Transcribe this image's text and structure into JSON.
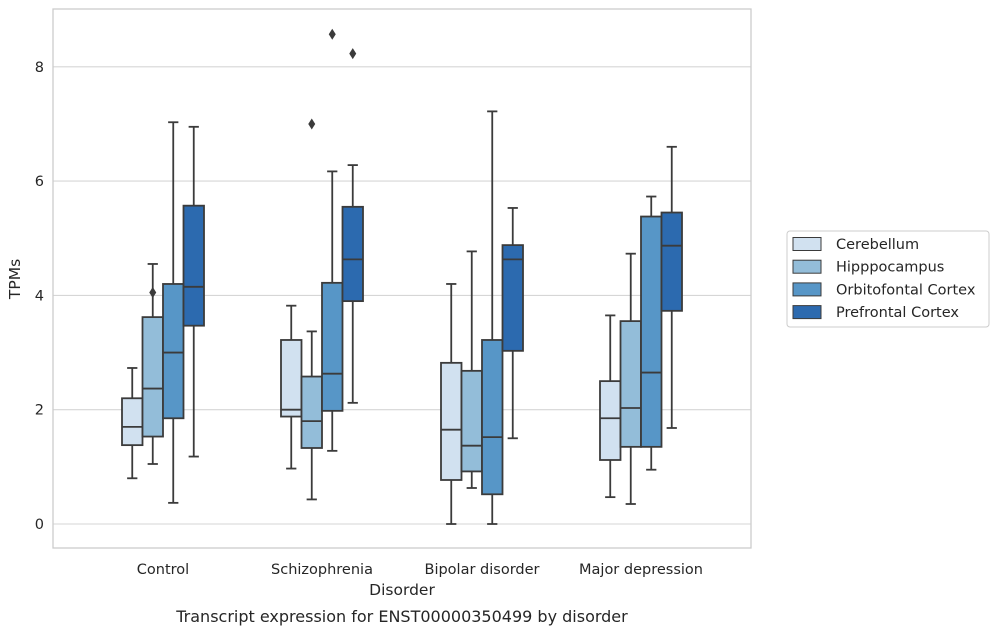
{
  "chart_data": {
    "type": "box",
    "xlabel": "Disorder",
    "ylabel": "TPMs",
    "caption": "Transcript expression for ENST00000350499 by disorder",
    "ylim": [
      -0.4,
      9.05
    ],
    "yticks": [
      0,
      2,
      4,
      6,
      8
    ],
    "grid": "horizontal",
    "legend_position": "right",
    "categories": [
      "Control",
      "Schizophrenia",
      "Bipolar disorder",
      "Major depression"
    ],
    "series": [
      {
        "name": "Cerebellum",
        "color": "#d1e1f0",
        "boxes": [
          {
            "whislo": 0.8,
            "q1": 1.38,
            "med": 1.7,
            "q3": 2.2,
            "whishi": 2.73,
            "fliers": []
          },
          {
            "whislo": 0.97,
            "q1": 1.88,
            "med": 2.0,
            "q3": 3.22,
            "whishi": 3.82,
            "fliers": []
          },
          {
            "whislo": 0.0,
            "q1": 0.77,
            "med": 1.65,
            "q3": 2.82,
            "whishi": 4.2,
            "fliers": []
          },
          {
            "whislo": 0.47,
            "q1": 1.12,
            "med": 1.85,
            "q3": 2.5,
            "whishi": 3.65,
            "fliers": []
          }
        ]
      },
      {
        "name": "Hipppocampus",
        "color": "#93bdd9",
        "boxes": [
          {
            "whislo": 1.05,
            "q1": 1.53,
            "med": 2.37,
            "q3": 3.62,
            "whishi": 4.55,
            "fliers": [
              4.05
            ]
          },
          {
            "whislo": 0.43,
            "q1": 1.33,
            "med": 1.8,
            "q3": 2.58,
            "whishi": 3.37,
            "fliers": [
              7.0
            ]
          },
          {
            "whislo": 0.63,
            "q1": 0.92,
            "med": 1.37,
            "q3": 2.68,
            "whishi": 4.77,
            "fliers": []
          },
          {
            "whislo": 0.35,
            "q1": 1.35,
            "med": 2.03,
            "q3": 3.55,
            "whishi": 4.73,
            "fliers": []
          }
        ]
      },
      {
        "name": "Orbitofontal Cortex",
        "color": "#5796c7",
        "boxes": [
          {
            "whislo": 0.37,
            "q1": 1.85,
            "med": 3.0,
            "q3": 4.2,
            "whishi": 7.03,
            "fliers": []
          },
          {
            "whislo": 1.28,
            "q1": 1.98,
            "med": 2.63,
            "q3": 4.22,
            "whishi": 6.17,
            "fliers": [
              8.57
            ]
          },
          {
            "whislo": 0.0,
            "q1": 0.52,
            "med": 1.52,
            "q3": 3.22,
            "whishi": 7.22,
            "fliers": []
          },
          {
            "whislo": 0.95,
            "q1": 1.35,
            "med": 2.65,
            "q3": 5.38,
            "whishi": 5.73,
            "fliers": []
          }
        ]
      },
      {
        "name": "Prefrontal Cortex",
        "color": "#2c6aaf",
        "boxes": [
          {
            "whislo": 1.18,
            "q1": 3.47,
            "med": 4.15,
            "q3": 5.57,
            "whishi": 6.95,
            "fliers": []
          },
          {
            "whislo": 2.12,
            "q1": 3.9,
            "med": 4.63,
            "q3": 5.55,
            "whishi": 6.28,
            "fliers": [
              8.23
            ]
          },
          {
            "whislo": 1.5,
            "q1": 3.03,
            "med": 4.63,
            "q3": 4.88,
            "whishi": 5.53,
            "fliers": []
          },
          {
            "whislo": 1.68,
            "q1": 3.73,
            "med": 4.87,
            "q3": 5.45,
            "whishi": 6.6,
            "fliers": []
          }
        ]
      }
    ]
  }
}
